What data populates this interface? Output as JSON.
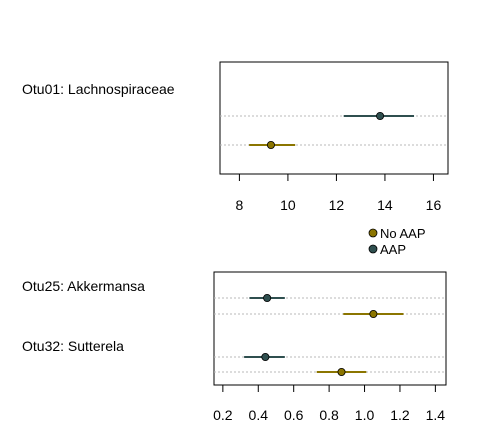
{
  "colors": {
    "no_aap": "#8b7500",
    "aap": "#2f4f4f"
  },
  "legend": {
    "entries": [
      {
        "label": "No AAP",
        "color": "#8b7500"
      },
      {
        "label": "AAP",
        "color": "#2f4f4f"
      }
    ]
  },
  "chart_data": [
    {
      "type": "scatter",
      "title": "",
      "xlabel": "",
      "ylabel": "",
      "xlim": [
        7.2,
        16.6
      ],
      "x_ticks": [
        8,
        10,
        12,
        14,
        16
      ],
      "categories": [
        "Otu01: Lachnospiraceae"
      ],
      "series": [
        {
          "key": "no_aap",
          "category": "Otu01: Lachnospiraceae",
          "estimate": 9.3,
          "lower": 8.4,
          "upper": 10.3
        },
        {
          "key": "aap",
          "category": "Otu01: Lachnospiraceae",
          "estimate": 13.8,
          "lower": 12.3,
          "upper": 15.2
        }
      ]
    },
    {
      "type": "scatter",
      "title": "",
      "xlabel": "",
      "ylabel": "",
      "xlim": [
        0.15,
        1.46
      ],
      "x_ticks": [
        0.2,
        0.4,
        0.6,
        0.8,
        1.0,
        1.2,
        1.4
      ],
      "categories": [
        "Otu25: Akkermansa",
        "Otu32: Sutterela"
      ],
      "series": [
        {
          "key": "aap",
          "category": "Otu25: Akkermansa",
          "estimate": 0.45,
          "lower": 0.35,
          "upper": 0.55
        },
        {
          "key": "no_aap",
          "category": "Otu25: Akkermansa",
          "estimate": 1.05,
          "lower": 0.88,
          "upper": 1.22
        },
        {
          "key": "aap",
          "category": "Otu32: Sutterela",
          "estimate": 0.44,
          "lower": 0.32,
          "upper": 0.55
        },
        {
          "key": "no_aap",
          "category": "Otu32: Sutterela",
          "estimate": 0.87,
          "lower": 0.73,
          "upper": 1.01
        }
      ]
    }
  ]
}
